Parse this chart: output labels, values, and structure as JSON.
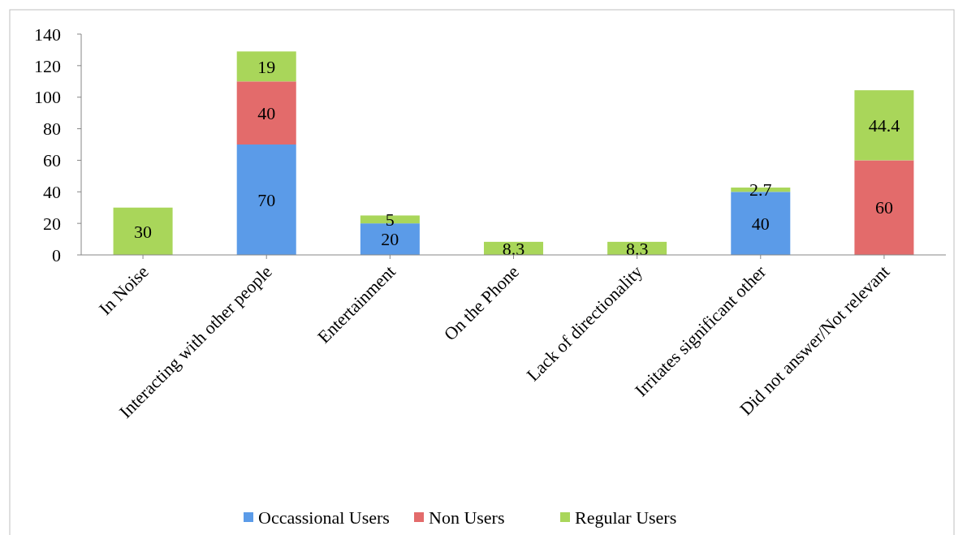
{
  "chart_data": {
    "type": "bar",
    "stacked": true,
    "categories": [
      "In Noise",
      "Interacting with other people",
      "Entertainment",
      "On the Phone",
      "Lack of directionality",
      "Irritates significant other",
      "Did not answer/Not relevant"
    ],
    "series": [
      {
        "name": "Occassional Users",
        "color": "#5b9be8",
        "values": [
          null,
          70,
          20,
          null,
          null,
          40,
          null
        ]
      },
      {
        "name": "Non Users",
        "color": "#e36b6b",
        "values": [
          null,
          40,
          null,
          null,
          null,
          null,
          60
        ]
      },
      {
        "name": "Regular Users",
        "color": "#a9d65a",
        "values": [
          30,
          19,
          5,
          8.3,
          8.3,
          2.7,
          44.4
        ]
      }
    ],
    "ylim": [
      0,
      140
    ],
    "yticks": [
      0,
      20,
      40,
      60,
      80,
      100,
      120,
      140
    ],
    "data_labels": true,
    "legend": "bottom"
  }
}
